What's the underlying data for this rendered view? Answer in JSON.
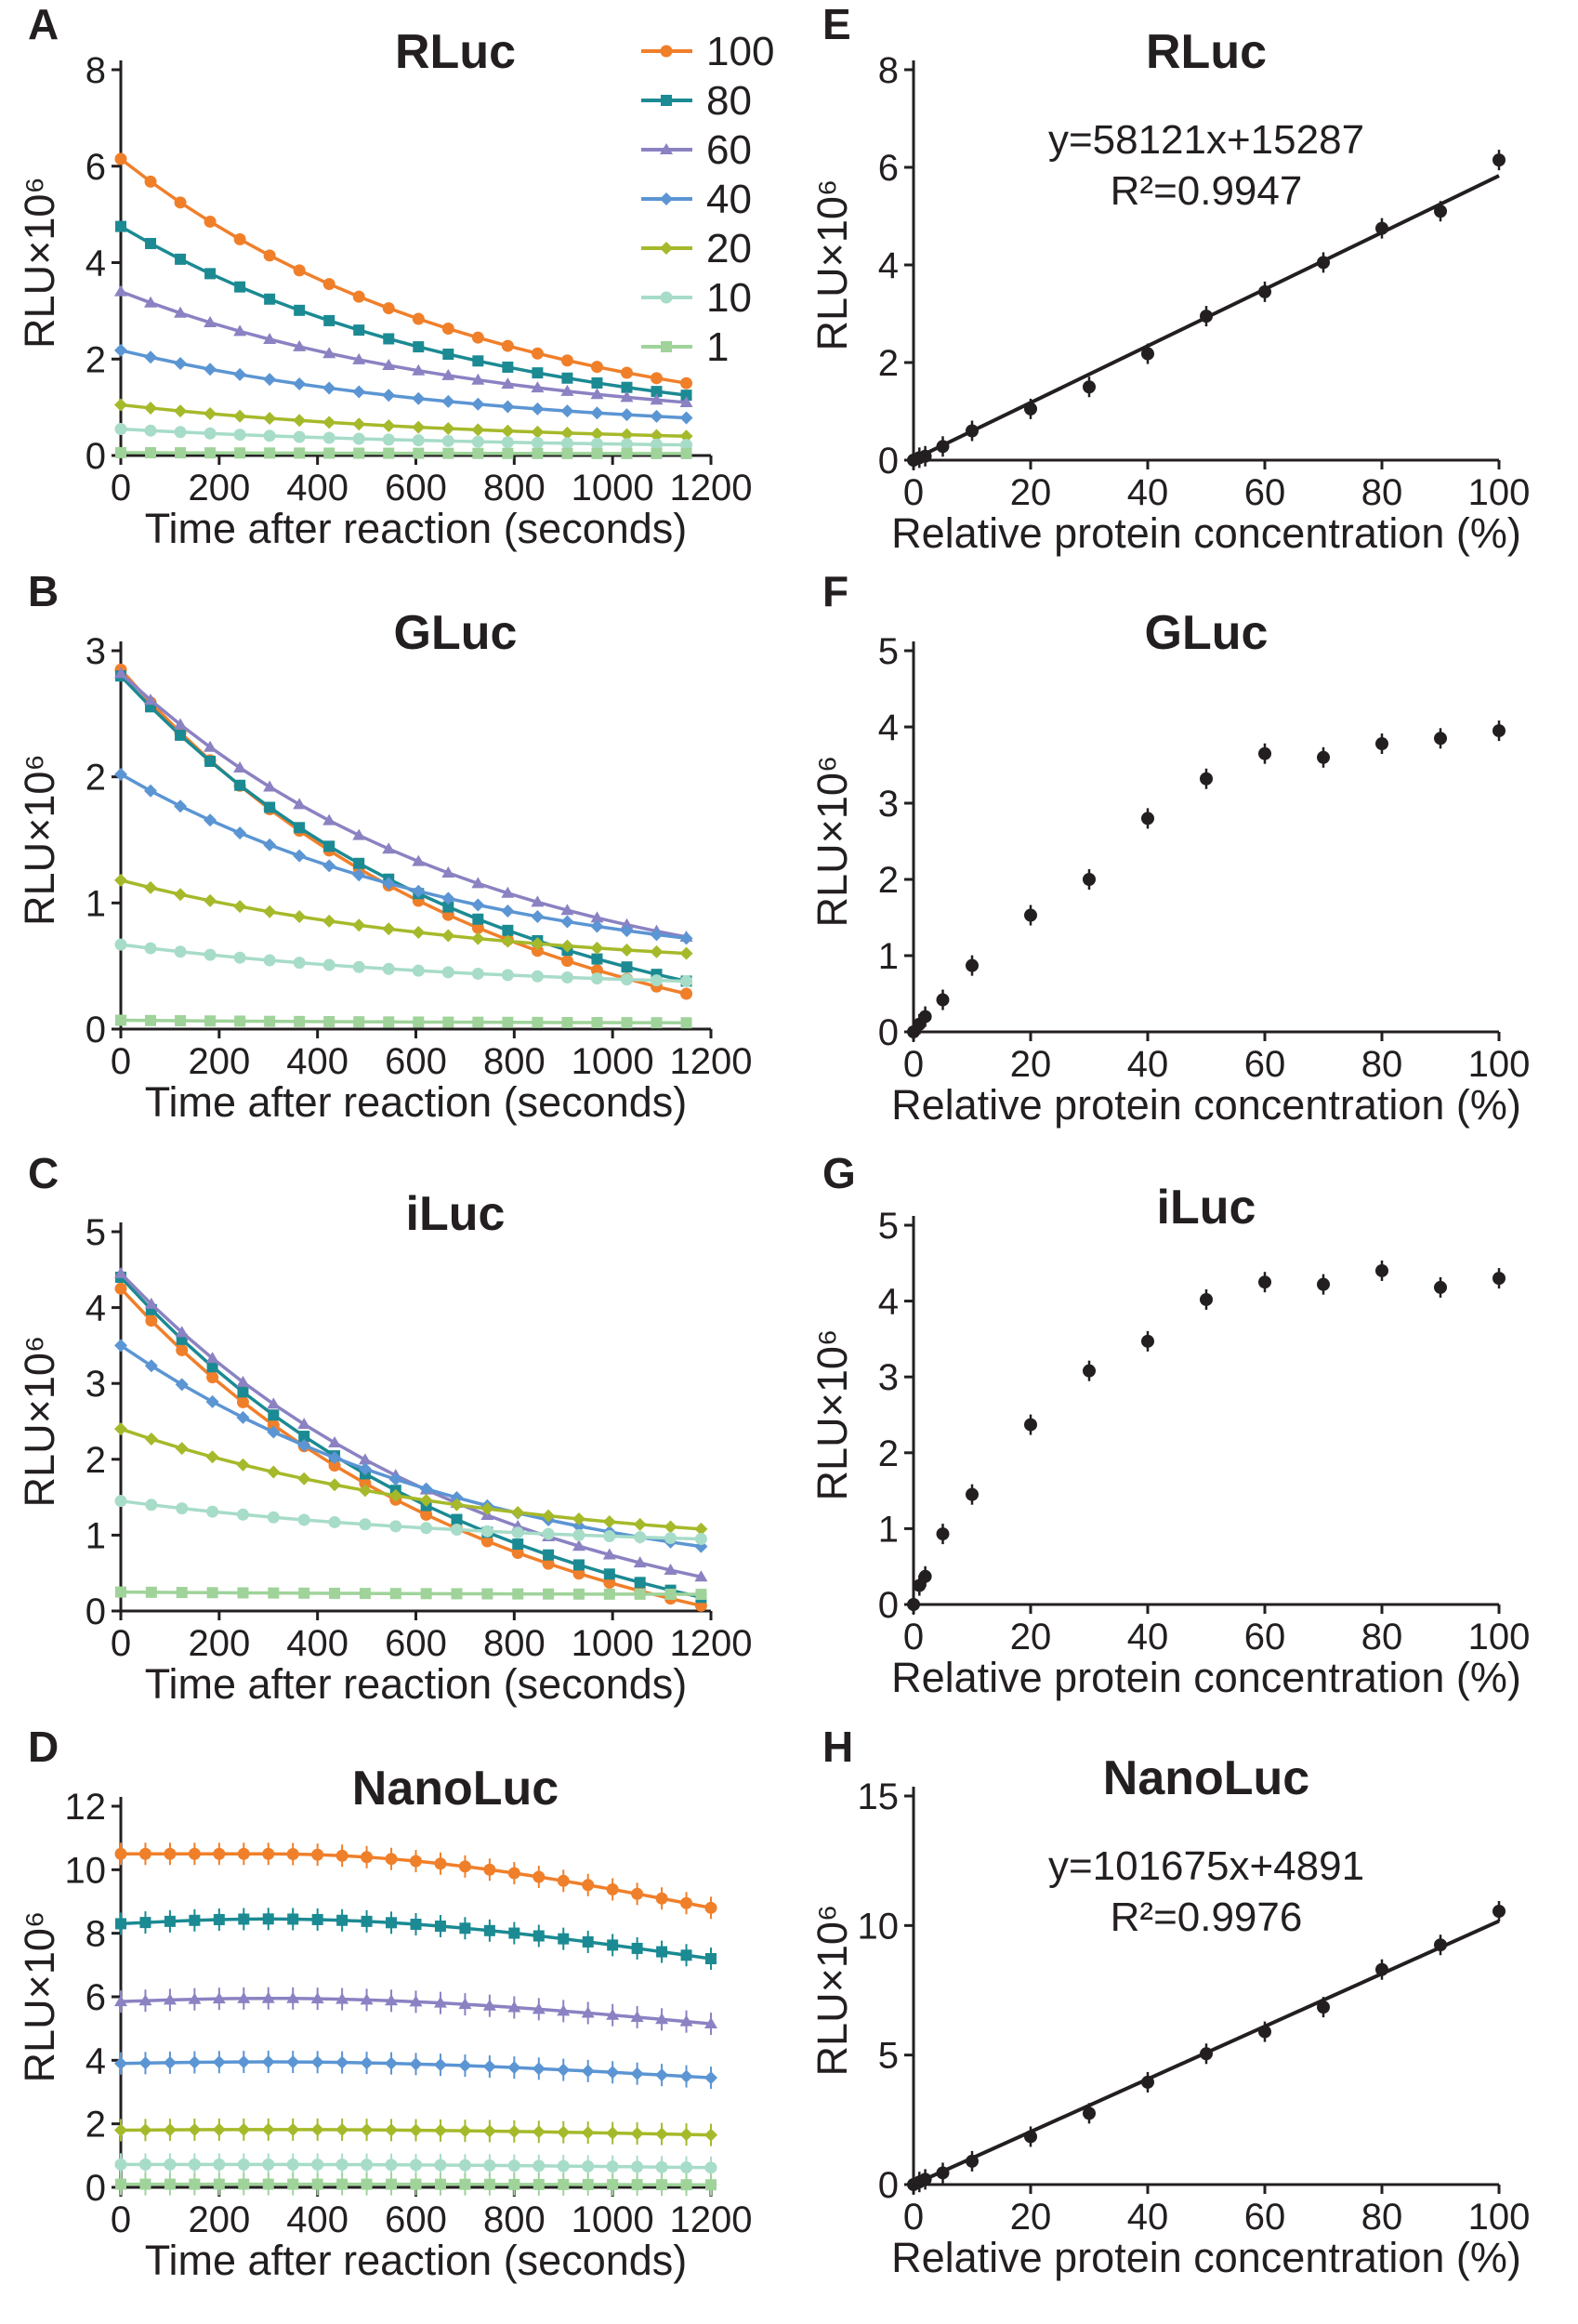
{
  "series_colors": {
    "100": "#f07f2a",
    "80": "#1b8a93",
    "60": "#8a82c2",
    "40": "#5b95d3",
    "20": "#a6b92a",
    "10": "#a7dcc8",
    "1": "#9fd39a"
  },
  "fit_color": "#231f20",
  "legend": {
    "labels": [
      "100",
      "80",
      "60",
      "40",
      "20",
      "10",
      "1"
    ]
  },
  "chart_data": [
    {
      "id": "A",
      "type": "line",
      "title": "RLuc",
      "xlabel": "Time after reaction (seconds)",
      "ylabel": "RLU×10⁶",
      "xlim": [
        0,
        1200
      ],
      "ylim": [
        0,
        8
      ],
      "xticks": [
        0,
        200,
        400,
        600,
        800,
        1000,
        1200
      ],
      "yticks": [
        0,
        2,
        4,
        6,
        8
      ],
      "x_range": [
        0,
        1150
      ],
      "points": 20,
      "series": [
        {
          "name": "100",
          "start": 6.15,
          "end": 1.5
        },
        {
          "name": "80",
          "start": 4.75,
          "end": 1.25
        },
        {
          "name": "60",
          "start": 3.4,
          "end": 1.1
        },
        {
          "name": "40",
          "start": 2.18,
          "end": 0.78
        },
        {
          "name": "20",
          "start": 1.05,
          "end": 0.4
        },
        {
          "name": "10",
          "start": 0.55,
          "end": 0.22
        },
        {
          "name": "1",
          "start": 0.06,
          "end": 0.04
        }
      ]
    },
    {
      "id": "B",
      "type": "line",
      "title": "GLuc",
      "xlabel": "Time after reaction (seconds)",
      "ylabel": "RLU×10⁶",
      "xlim": [
        0,
        1200
      ],
      "ylim": [
        0,
        3
      ],
      "xticks": [
        0,
        200,
        400,
        600,
        800,
        1000,
        1200
      ],
      "yticks": [
        0,
        1,
        2,
        3
      ],
      "x_range": [
        0,
        1150
      ],
      "points": 20,
      "series": [
        {
          "name": "100",
          "start": 2.85,
          "end": 0.28
        },
        {
          "name": "80",
          "start": 2.8,
          "end": 0.38
        },
        {
          "name": "60",
          "start": 2.82,
          "end": 0.73
        },
        {
          "name": "40",
          "start": 2.02,
          "end": 0.72
        },
        {
          "name": "20",
          "start": 1.18,
          "end": 0.6
        },
        {
          "name": "10",
          "start": 0.67,
          "end": 0.38
        },
        {
          "name": "1",
          "start": 0.07,
          "end": 0.05
        }
      ]
    },
    {
      "id": "C",
      "type": "line",
      "title": "iLuc",
      "xlabel": "Time after reaction (seconds)",
      "ylabel": "RLU×10⁶",
      "xlim": [
        0,
        1200
      ],
      "ylim": [
        0,
        5
      ],
      "xticks": [
        0,
        200,
        400,
        600,
        800,
        1000,
        1200
      ],
      "yticks": [
        0,
        1,
        2,
        3,
        4,
        5
      ],
      "x_range": [
        0,
        1180
      ],
      "points": 20,
      "series": [
        {
          "name": "100",
          "start": 4.25,
          "end": 0.07
        },
        {
          "name": "80",
          "start": 4.4,
          "end": 0.18
        },
        {
          "name": "60",
          "start": 4.45,
          "end": 0.45
        },
        {
          "name": "40",
          "start": 3.5,
          "end": 0.85
        },
        {
          "name": "20",
          "start": 2.4,
          "end": 1.08
        },
        {
          "name": "10",
          "start": 1.45,
          "end": 0.95
        },
        {
          "name": "1",
          "start": 0.25,
          "end": 0.22
        }
      ]
    },
    {
      "id": "D",
      "type": "line",
      "title": "NanoLuc",
      "xlabel": "Time after reaction (seconds)",
      "ylabel": "RLU×10⁶",
      "xlim": [
        0,
        1200
      ],
      "ylim": [
        0,
        12
      ],
      "xticks": [
        0,
        200,
        400,
        600,
        800,
        1000,
        1200
      ],
      "yticks": [
        0,
        2,
        4,
        6,
        8,
        10,
        12
      ],
      "x_range": [
        0,
        1200
      ],
      "points": 25,
      "series": [
        {
          "name": "100",
          "start": 10.5,
          "peak": 10.5,
          "end": 8.8
        },
        {
          "name": "80",
          "start": 8.3,
          "peak": 8.45,
          "end": 7.2
        },
        {
          "name": "60",
          "start": 5.85,
          "peak": 5.95,
          "end": 5.15
        },
        {
          "name": "40",
          "start": 3.9,
          "peak": 3.95,
          "end": 3.45
        },
        {
          "name": "20",
          "start": 1.8,
          "peak": 1.82,
          "end": 1.65
        },
        {
          "name": "10",
          "start": 0.72,
          "peak": 0.72,
          "end": 0.62
        },
        {
          "name": "1",
          "start": 0.1,
          "peak": 0.1,
          "end": 0.08
        }
      ]
    },
    {
      "id": "E",
      "type": "scatter",
      "title": "RLuc",
      "xlabel": "Relative protein concentration (%)",
      "ylabel": "RLU×10⁶",
      "xlim": [
        0,
        100
      ],
      "ylim": [
        0,
        8
      ],
      "xticks": [
        0,
        20,
        40,
        60,
        80,
        100
      ],
      "yticks": [
        0,
        2,
        4,
        6,
        8
      ],
      "equation": "y=58121x+15287",
      "r_squared": "R²=0.9947",
      "fit": {
        "slope": 0.058121,
        "intercept": 0.015287
      },
      "x": [
        0,
        1,
        2,
        5,
        10,
        20,
        30,
        40,
        50,
        60,
        70,
        80,
        90,
        100
      ],
      "y": [
        0.0,
        0.05,
        0.08,
        0.28,
        0.6,
        1.05,
        1.5,
        2.18,
        2.95,
        3.45,
        4.05,
        4.75,
        5.1,
        6.15
      ]
    },
    {
      "id": "F",
      "type": "scatter",
      "title": "GLuc",
      "xlabel": "Relative protein concentration (%)",
      "ylabel": "RLU×10⁶",
      "xlim": [
        0,
        100
      ],
      "ylim": [
        0,
        5
      ],
      "xticks": [
        0,
        20,
        40,
        60,
        80,
        100
      ],
      "yticks": [
        0,
        1,
        2,
        3,
        4,
        5
      ],
      "x": [
        0,
        1,
        2,
        5,
        10,
        20,
        30,
        40,
        50,
        60,
        70,
        80,
        90,
        100
      ],
      "y": [
        0.0,
        0.1,
        0.2,
        0.42,
        0.87,
        1.53,
        2.0,
        2.8,
        3.32,
        3.65,
        3.6,
        3.78,
        3.85,
        3.95
      ]
    },
    {
      "id": "G",
      "type": "scatter",
      "title": "iLuc",
      "xlabel": "Relative protein concentration (%)",
      "ylabel": "RLU×10⁶",
      "xlim": [
        0,
        100
      ],
      "ylim": [
        0,
        5
      ],
      "xticks": [
        0,
        20,
        40,
        60,
        80,
        100
      ],
      "yticks": [
        0,
        1,
        2,
        3,
        4,
        5
      ],
      "x": [
        0,
        1,
        2,
        5,
        10,
        20,
        30,
        40,
        50,
        60,
        70,
        80,
        90,
        100
      ],
      "y": [
        0.0,
        0.25,
        0.37,
        0.93,
        1.45,
        2.37,
        3.08,
        3.47,
        4.02,
        4.25,
        4.22,
        4.4,
        4.18,
        4.3
      ]
    },
    {
      "id": "H",
      "type": "scatter",
      "title": "NanoLuc",
      "xlabel": "Relative protein concentration (%)",
      "ylabel": "RLU×10⁶",
      "xlim": [
        0,
        100
      ],
      "ylim": [
        0,
        15
      ],
      "xticks": [
        0,
        20,
        40,
        60,
        80,
        100
      ],
      "yticks": [
        0,
        5,
        10,
        15
      ],
      "equation": "y=101675x+4891",
      "r_squared": "R²=0.9976",
      "fit": {
        "slope": 0.101675,
        "intercept": 0.004891
      },
      "x": [
        0,
        1,
        2,
        5,
        10,
        20,
        30,
        40,
        50,
        60,
        70,
        80,
        90,
        100
      ],
      "y": [
        0.0,
        0.1,
        0.2,
        0.45,
        0.9,
        1.85,
        2.75,
        3.95,
        5.05,
        5.9,
        6.85,
        8.3,
        9.25,
        10.55
      ]
    }
  ]
}
